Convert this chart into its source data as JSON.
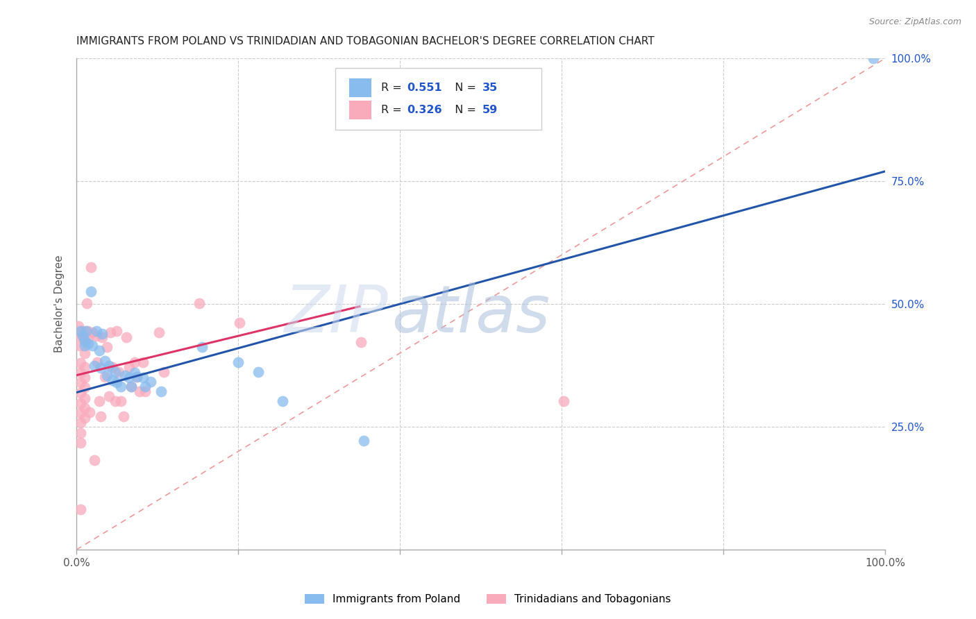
{
  "title": "IMMIGRANTS FROM POLAND VS TRINIDADIAN AND TOBAGONIAN BACHELOR'S DEGREE CORRELATION CHART",
  "source": "Source: ZipAtlas.com",
  "ylabel_label": "Bachelor's Degree",
  "ylabel_ticks": [
    "25.0%",
    "50.0%",
    "75.0%",
    "100.0%"
  ],
  "ylabel_tick_vals": [
    0.25,
    0.5,
    0.75,
    1.0
  ],
  "legend_labels": [
    "Immigrants from Poland",
    "Trinidadians and Tobagonians"
  ],
  "R_blue": 0.551,
  "N_blue": 35,
  "R_pink": 0.326,
  "N_pink": 59,
  "blue_color": "#88bbee",
  "pink_color": "#f9aabb",
  "blue_line_color": "#2255aa",
  "pink_line_color": "#dd3366",
  "ref_line_color": "#ee9999",
  "blue_line": [
    [
      0.0,
      0.32
    ],
    [
      1.0,
      0.77
    ]
  ],
  "pink_line": [
    [
      0.0,
      0.355
    ],
    [
      0.35,
      0.495
    ]
  ],
  "scatter_blue": [
    [
      0.005,
      0.445
    ],
    [
      0.008,
      0.435
    ],
    [
      0.01,
      0.425
    ],
    [
      0.01,
      0.415
    ],
    [
      0.012,
      0.445
    ],
    [
      0.015,
      0.42
    ],
    [
      0.018,
      0.525
    ],
    [
      0.02,
      0.415
    ],
    [
      0.022,
      0.375
    ],
    [
      0.025,
      0.445
    ],
    [
      0.028,
      0.405
    ],
    [
      0.03,
      0.37
    ],
    [
      0.032,
      0.44
    ],
    [
      0.035,
      0.385
    ],
    [
      0.038,
      0.355
    ],
    [
      0.04,
      0.375
    ],
    [
      0.045,
      0.345
    ],
    [
      0.048,
      0.362
    ],
    [
      0.05,
      0.34
    ],
    [
      0.055,
      0.332
    ],
    [
      0.06,
      0.355
    ],
    [
      0.065,
      0.35
    ],
    [
      0.068,
      0.332
    ],
    [
      0.072,
      0.36
    ],
    [
      0.075,
      0.352
    ],
    [
      0.082,
      0.35
    ],
    [
      0.085,
      0.332
    ],
    [
      0.092,
      0.342
    ],
    [
      0.105,
      0.322
    ],
    [
      0.155,
      0.412
    ],
    [
      0.2,
      0.382
    ],
    [
      0.225,
      0.362
    ],
    [
      0.255,
      0.302
    ],
    [
      0.355,
      0.222
    ],
    [
      0.985,
      1.0
    ]
  ],
  "scatter_pink": [
    [
      0.003,
      0.455
    ],
    [
      0.004,
      0.435
    ],
    [
      0.004,
      0.415
    ],
    [
      0.005,
      0.38
    ],
    [
      0.005,
      0.36
    ],
    [
      0.005,
      0.34
    ],
    [
      0.005,
      0.32
    ],
    [
      0.005,
      0.298
    ],
    [
      0.005,
      0.278
    ],
    [
      0.005,
      0.258
    ],
    [
      0.005,
      0.238
    ],
    [
      0.005,
      0.218
    ],
    [
      0.005,
      0.082
    ],
    [
      0.008,
      0.445
    ],
    [
      0.009,
      0.435
    ],
    [
      0.01,
      0.422
    ],
    [
      0.01,
      0.4
    ],
    [
      0.01,
      0.372
    ],
    [
      0.01,
      0.35
    ],
    [
      0.01,
      0.33
    ],
    [
      0.01,
      0.308
    ],
    [
      0.01,
      0.288
    ],
    [
      0.01,
      0.268
    ],
    [
      0.013,
      0.502
    ],
    [
      0.014,
      0.445
    ],
    [
      0.015,
      0.432
    ],
    [
      0.016,
      0.28
    ],
    [
      0.018,
      0.575
    ],
    [
      0.02,
      0.442
    ],
    [
      0.022,
      0.182
    ],
    [
      0.025,
      0.435
    ],
    [
      0.026,
      0.382
    ],
    [
      0.028,
      0.302
    ],
    [
      0.03,
      0.272
    ],
    [
      0.032,
      0.432
    ],
    [
      0.035,
      0.352
    ],
    [
      0.038,
      0.412
    ],
    [
      0.04,
      0.312
    ],
    [
      0.042,
      0.442
    ],
    [
      0.045,
      0.372
    ],
    [
      0.048,
      0.302
    ],
    [
      0.05,
      0.445
    ],
    [
      0.052,
      0.362
    ],
    [
      0.055,
      0.302
    ],
    [
      0.058,
      0.272
    ],
    [
      0.062,
      0.432
    ],
    [
      0.065,
      0.372
    ],
    [
      0.068,
      0.332
    ],
    [
      0.072,
      0.382
    ],
    [
      0.075,
      0.352
    ],
    [
      0.078,
      0.322
    ],
    [
      0.082,
      0.382
    ],
    [
      0.085,
      0.322
    ],
    [
      0.102,
      0.442
    ],
    [
      0.108,
      0.362
    ],
    [
      0.152,
      0.502
    ],
    [
      0.202,
      0.462
    ],
    [
      0.352,
      0.422
    ],
    [
      0.602,
      0.302
    ]
  ],
  "xlim": [
    0.0,
    1.0
  ],
  "ylim": [
    0.0,
    1.0
  ],
  "watermark_zip": "ZIP",
  "watermark_atlas": "atlas",
  "background_color": "#ffffff",
  "grid_color": "#cccccc"
}
